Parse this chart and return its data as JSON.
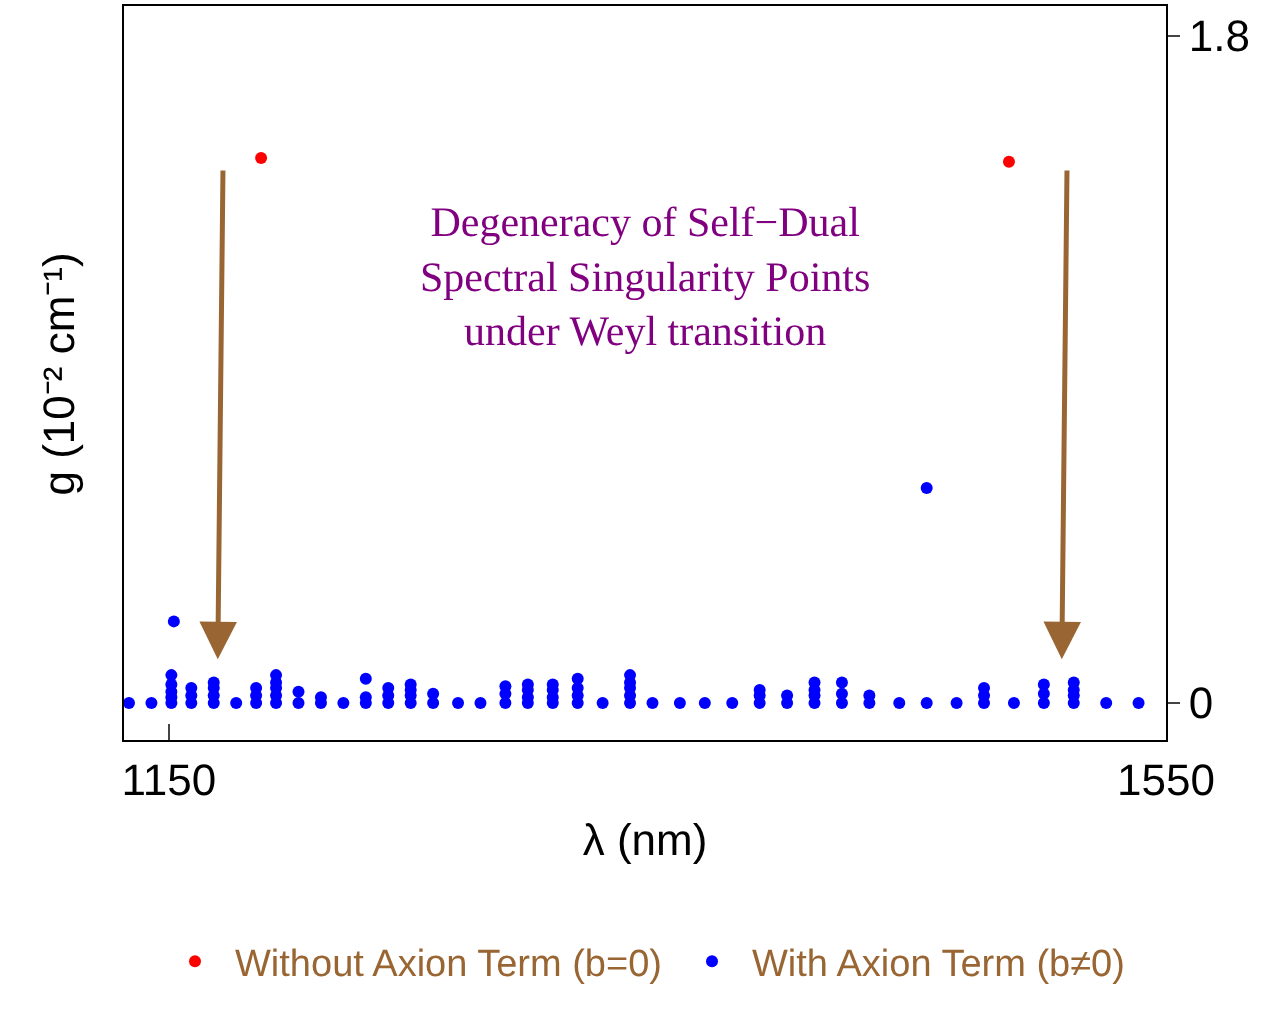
{
  "chart_data": {
    "type": "scatter",
    "xlabel": "λ (nm)",
    "ylabel": "g (10⁻² cm⁻¹)",
    "xlim": [
      1132,
      1550
    ],
    "ylim": [
      -0.1,
      1.88
    ],
    "xticks": [
      1150,
      1550
    ],
    "yticks": [
      0,
      1.8
    ],
    "legend": "bottom",
    "marker": "circle",
    "annotations": [
      "Degeneracy of Self−Dual\nSpectral Singularity Points\nunder Weyl transition"
    ],
    "series": [
      {
        "name": "Without Axion Term (b=0)",
        "color": "#ff0000",
        "x": [
          1187,
          1487
        ],
        "values": [
          1.47,
          1.46
        ]
      },
      {
        "name": "With Axion Term (b≠0)",
        "color": "#0000ff",
        "x": [
          1152,
          1454,
          1134,
          1143,
          1151,
          1151,
          1151,
          1151,
          1151,
          1159,
          1159,
          1159,
          1168,
          1168,
          1168,
          1168,
          1177,
          1185,
          1185,
          1185,
          1193,
          1193,
          1193,
          1193,
          1193,
          1202,
          1202,
          1211,
          1211,
          1220,
          1229,
          1229,
          1229,
          1238,
          1238,
          1238,
          1247,
          1247,
          1247,
          1247,
          1256,
          1256,
          1266,
          1275,
          1285,
          1285,
          1285,
          1294,
          1294,
          1294,
          1294,
          1304,
          1304,
          1304,
          1304,
          1314,
          1314,
          1314,
          1314,
          1324,
          1335,
          1335,
          1335,
          1335,
          1335,
          1344,
          1355,
          1365,
          1376,
          1387,
          1387,
          1387,
          1398,
          1398,
          1409,
          1409,
          1409,
          1409,
          1420,
          1420,
          1420,
          1431,
          1431,
          1443,
          1454,
          1466,
          1477,
          1477,
          1477,
          1489,
          1501,
          1501,
          1501,
          1513,
          1513,
          1513,
          1513,
          1526,
          1539
        ],
        "values": [
          0.22,
          0.58,
          0,
          0,
          0,
          0.015,
          0.03,
          0.05,
          0.075,
          0,
          0.02,
          0.04,
          0,
          0.02,
          0.04,
          0.055,
          0,
          0,
          0.02,
          0.04,
          0,
          0.02,
          0.04,
          0.055,
          0.075,
          0,
          0.03,
          0,
          0.015,
          0,
          0,
          0.015,
          0.065,
          0,
          0.02,
          0.04,
          0,
          0.02,
          0.035,
          0.05,
          0,
          0.025,
          0,
          0,
          0,
          0.025,
          0.045,
          0,
          0.015,
          0.035,
          0.05,
          0,
          0.015,
          0.035,
          0.05,
          0,
          0.02,
          0.04,
          0.065,
          0,
          0,
          0.02,
          0.04,
          0.055,
          0.075,
          0,
          0,
          0,
          0,
          0,
          0.02,
          0.035,
          0,
          0.02,
          0,
          0.02,
          0.035,
          0.055,
          0,
          0.025,
          0.055,
          0,
          0.02,
          0,
          0,
          0,
          0,
          0.02,
          0.04,
          0,
          0,
          0.025,
          0.05,
          0,
          0.02,
          0.035,
          0.055,
          0,
          0
        ]
      }
    ]
  }
}
